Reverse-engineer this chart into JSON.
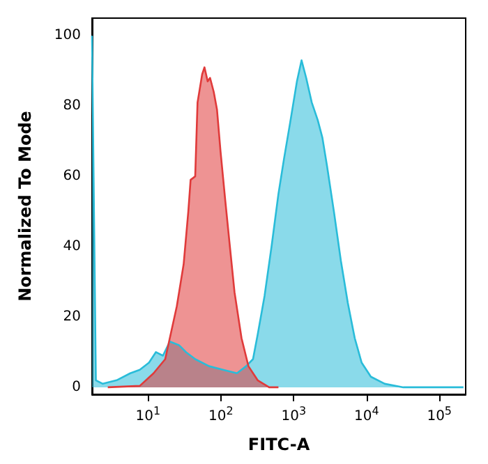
{
  "chart_data": {
    "type": "area",
    "xlabel": "FITC-A",
    "ylabel": "Normalized To Mode",
    "log": "x",
    "xlim": [
      1.7,
      230000
    ],
    "ylim": [
      -2,
      105
    ],
    "xticks": [
      {
        "value": 10,
        "label": "10$^{1}$"
      },
      {
        "value": 100,
        "label": "10$^{2}$"
      },
      {
        "value": 1000,
        "label": "10$^{3}$"
      },
      {
        "value": 10000,
        "label": "10$^{4}$"
      },
      {
        "value": 100000,
        "label": "10$^{5}$"
      }
    ],
    "yticks": [
      0,
      20,
      40,
      60,
      80,
      100
    ],
    "grid": false,
    "marker": "none",
    "line_style": "solid",
    "series": [
      {
        "color": "#29bcd9",
        "x": [
          1.7,
          1.92,
          2.39,
          3.7,
          5.7,
          7.7,
          10.3,
          12.8,
          16.0,
          19.9,
          26.6,
          33.2,
          44.4,
          68.9,
          107,
          166,
          222,
          276,
          320,
          398,
          496,
          617,
          736,
          889,
          1107,
          1282,
          1483,
          1770,
          2138,
          2477,
          2865,
          3565,
          4443,
          5533,
          6887,
          8570,
          11480,
          17800,
          32000,
          214000
        ],
        "values": [
          100,
          2,
          1,
          2,
          4,
          5,
          7,
          10,
          9,
          13,
          12,
          10,
          8,
          6,
          5,
          4,
          6,
          8,
          15,
          26,
          40,
          55,
          65,
          75,
          87,
          93,
          88,
          81,
          76,
          71,
          63,
          50,
          36,
          24,
          14,
          7,
          3,
          1,
          0,
          0
        ]
      },
      {
        "color": "#e03a3a",
        "x": [
          2.8,
          7.7,
          11.9,
          17.2,
          19.9,
          24.8,
          30.8,
          35.7,
          38.4,
          44.4,
          47.8,
          55.3,
          59.5,
          65.9,
          71.0,
          79.8,
          88.4,
          99,
          115,
          133,
          154,
          192,
          239,
          320,
          460,
          617
        ],
        "values": [
          0,
          0.4,
          4,
          8,
          14,
          23,
          35,
          50,
          59,
          60,
          81,
          89,
          91,
          87,
          88,
          84,
          79,
          67,
          53,
          40,
          27,
          14,
          6,
          2,
          0,
          0
        ]
      }
    ]
  }
}
